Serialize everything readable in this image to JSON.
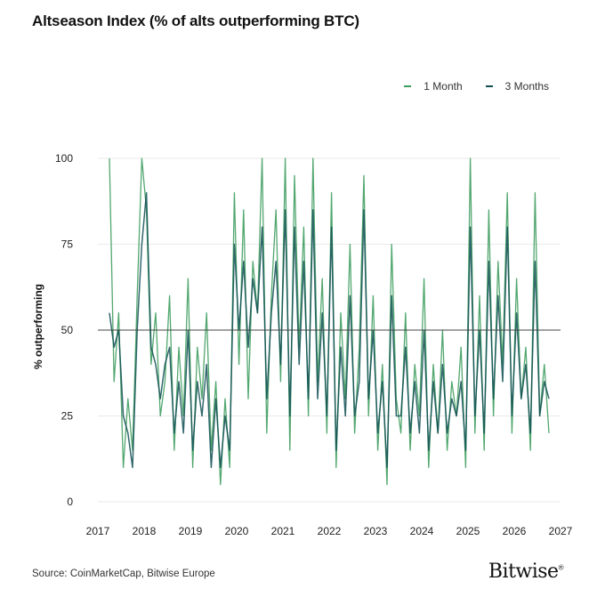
{
  "title": "Altseason Index (% of alts outperforming BTC)",
  "source": "Source: CoinMarketCap, Bitwise Europe",
  "brand": "Bitwise",
  "brand_mark": "®",
  "colors": {
    "one_month": "#3f9d5f",
    "three_months": "#0e4d52",
    "reference": "#444444",
    "grid": "#e9e9e9"
  },
  "chart_data": {
    "type": "line",
    "title": "Altseason Index (% of alts outperforming BTC)",
    "ylabel": "% outperforming",
    "xlabel": "",
    "xlim": [
      2017,
      2027
    ],
    "ylim": [
      0,
      100
    ],
    "x_ticks": [
      2017,
      2018,
      2019,
      2020,
      2021,
      2022,
      2023,
      2024,
      2025,
      2026,
      2027
    ],
    "y_ticks": [
      0,
      25,
      50,
      75,
      100
    ],
    "reference_line": 50,
    "grid": "horizontal",
    "legend": "top-right",
    "series": [
      {
        "name": "1 Month",
        "color": "#3f9d5f",
        "x": [
          2017.25,
          2017.35,
          2017.45,
          2017.55,
          2017.65,
          2017.75,
          2017.85,
          2017.95,
          2018.05,
          2018.15,
          2018.25,
          2018.35,
          2018.45,
          2018.55,
          2018.65,
          2018.75,
          2018.85,
          2018.95,
          2019.05,
          2019.15,
          2019.25,
          2019.35,
          2019.45,
          2019.55,
          2019.65,
          2019.75,
          2019.85,
          2019.95,
          2020.05,
          2020.15,
          2020.25,
          2020.35,
          2020.45,
          2020.55,
          2020.65,
          2020.75,
          2020.85,
          2020.95,
          2021.05,
          2021.15,
          2021.25,
          2021.35,
          2021.45,
          2021.55,
          2021.65,
          2021.75,
          2021.85,
          2021.95,
          2022.05,
          2022.15,
          2022.25,
          2022.35,
          2022.45,
          2022.55,
          2022.65,
          2022.75,
          2022.85,
          2022.95,
          2023.05,
          2023.15,
          2023.25,
          2023.35,
          2023.45,
          2023.55,
          2023.65,
          2023.75,
          2023.85,
          2023.95,
          2024.05,
          2024.15,
          2024.25,
          2024.35,
          2024.45,
          2024.55,
          2024.65,
          2024.75,
          2024.85,
          2024.95,
          2025.05,
          2025.15,
          2025.25,
          2025.35,
          2025.45,
          2025.55,
          2025.65,
          2025.75,
          2025.85,
          2025.95,
          2026.05,
          2026.15,
          2026.25,
          2026.35,
          2026.45,
          2026.55,
          2026.65,
          2026.75
        ],
        "values": [
          100,
          35,
          55,
          10,
          30,
          15,
          60,
          100,
          85,
          40,
          55,
          25,
          35,
          60,
          15,
          45,
          25,
          65,
          10,
          45,
          30,
          55,
          15,
          35,
          5,
          30,
          10,
          90,
          40,
          85,
          30,
          70,
          55,
          100,
          20,
          60,
          85,
          35,
          100,
          15,
          95,
          45,
          80,
          25,
          100,
          35,
          65,
          20,
          90,
          10,
          55,
          30,
          75,
          20,
          45,
          95,
          25,
          60,
          15,
          40,
          5,
          75,
          30,
          20,
          55,
          15,
          40,
          25,
          65,
          10,
          40,
          20,
          50,
          15,
          35,
          25,
          45,
          10,
          100,
          20,
          60,
          15,
          85,
          25,
          70,
          40,
          90,
          20,
          65,
          30,
          45,
          15,
          90,
          25,
          40,
          20
        ]
      },
      {
        "name": "3 Months",
        "color": "#0e4d52",
        "x": [
          2017.25,
          2017.35,
          2017.45,
          2017.55,
          2017.65,
          2017.75,
          2017.85,
          2017.95,
          2018.05,
          2018.15,
          2018.25,
          2018.35,
          2018.45,
          2018.55,
          2018.65,
          2018.75,
          2018.85,
          2018.95,
          2019.05,
          2019.15,
          2019.25,
          2019.35,
          2019.45,
          2019.55,
          2019.65,
          2019.75,
          2019.85,
          2019.95,
          2020.05,
          2020.15,
          2020.25,
          2020.35,
          2020.45,
          2020.55,
          2020.65,
          2020.75,
          2020.85,
          2020.95,
          2021.05,
          2021.15,
          2021.25,
          2021.35,
          2021.45,
          2021.55,
          2021.65,
          2021.75,
          2021.85,
          2021.95,
          2022.05,
          2022.15,
          2022.25,
          2022.35,
          2022.45,
          2022.55,
          2022.65,
          2022.75,
          2022.85,
          2022.95,
          2023.05,
          2023.15,
          2023.25,
          2023.35,
          2023.45,
          2023.55,
          2023.65,
          2023.75,
          2023.85,
          2023.95,
          2024.05,
          2024.15,
          2024.25,
          2024.35,
          2024.45,
          2024.55,
          2024.65,
          2024.75,
          2024.85,
          2024.95,
          2025.05,
          2025.15,
          2025.25,
          2025.35,
          2025.45,
          2025.55,
          2025.65,
          2025.75,
          2025.85,
          2025.95,
          2026.05,
          2026.15,
          2026.25,
          2026.35,
          2026.45,
          2026.55,
          2026.65,
          2026.75
        ],
        "values": [
          55,
          45,
          50,
          25,
          20,
          10,
          50,
          75,
          90,
          45,
          40,
          30,
          40,
          45,
          20,
          35,
          20,
          50,
          15,
          35,
          25,
          40,
          10,
          30,
          10,
          25,
          15,
          75,
          50,
          70,
          45,
          65,
          55,
          80,
          30,
          55,
          70,
          40,
          85,
          25,
          80,
          40,
          70,
          30,
          85,
          30,
          55,
          25,
          80,
          15,
          45,
          25,
          60,
          25,
          35,
          85,
          30,
          50,
          20,
          35,
          10,
          60,
          25,
          25,
          45,
          20,
          35,
          20,
          50,
          15,
          35,
          20,
          40,
          20,
          30,
          25,
          35,
          15,
          80,
          25,
          50,
          20,
          70,
          30,
          60,
          35,
          80,
          25,
          55,
          30,
          40,
          20,
          70,
          25,
          35,
          30
        ]
      }
    ]
  }
}
